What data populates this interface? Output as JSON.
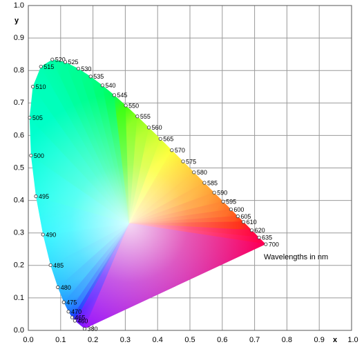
{
  "chart_data": {
    "type": "scatter",
    "x_label": "x",
    "y_label": "y",
    "annotation": "Wavelengths in nm",
    "wavelengths": [
      380,
      460,
      465,
      470,
      475,
      480,
      485,
      490,
      495,
      500,
      505,
      510,
      515,
      520,
      525,
      530,
      535,
      540,
      545,
      550,
      555,
      560,
      565,
      570,
      575,
      580,
      585,
      590,
      595,
      600,
      605,
      610,
      620,
      635,
      700
    ],
    "x": [
      0.1741,
      0.144,
      0.1355,
      0.1241,
      0.1096,
      0.0913,
      0.0687,
      0.0454,
      0.0235,
      0.0082,
      0.0039,
      0.0139,
      0.0389,
      0.0743,
      0.1142,
      0.1547,
      0.1929,
      0.2296,
      0.2658,
      0.3016,
      0.3373,
      0.3731,
      0.4087,
      0.4441,
      0.4788,
      0.5125,
      0.5448,
      0.5752,
      0.6029,
      0.627,
      0.6482,
      0.6658,
      0.6915,
      0.714,
      0.7347
    ],
    "values": [
      0.005,
      0.0297,
      0.0399,
      0.0578,
      0.0868,
      0.1327,
      0.2007,
      0.295,
      0.4127,
      0.5384,
      0.6548,
      0.7502,
      0.812,
      0.8338,
      0.8262,
      0.8059,
      0.7816,
      0.7543,
      0.7243,
      0.6923,
      0.6589,
      0.6245,
      0.5896,
      0.5547,
      0.5202,
      0.4866,
      0.4544,
      0.4242,
      0.3965,
      0.3725,
      0.3514,
      0.334,
      0.3083,
      0.2859,
      0.2653
    ],
    "xlim": [
      0,
      1
    ],
    "ylim": [
      0,
      1
    ],
    "xticks": [
      {
        "value": 0,
        "label": "0.0"
      },
      {
        "value": 0.1,
        "label": "0.1"
      },
      {
        "value": 0.2,
        "label": "0.2"
      },
      {
        "value": 0.3,
        "label": "0.3"
      },
      {
        "value": 0.4,
        "label": "0.4"
      },
      {
        "value": 0.5,
        "label": "0.5"
      },
      {
        "value": 0.6,
        "label": "0.6"
      },
      {
        "value": 0.7,
        "label": "0.7"
      },
      {
        "value": 0.8,
        "label": "0.8"
      },
      {
        "value": 0.9,
        "label": "0.9"
      },
      {
        "value": 1,
        "label": "1.0"
      }
    ],
    "yticks": [
      {
        "value": 0,
        "label": "0.0"
      },
      {
        "value": 0.1,
        "label": "0.1"
      },
      {
        "value": 0.2,
        "label": "0.2"
      },
      {
        "value": 0.3,
        "label": "0.3"
      },
      {
        "value": 0.4,
        "label": "0.4"
      },
      {
        "value": 0.5,
        "label": "0.5"
      },
      {
        "value": 0.6,
        "label": "0.6"
      },
      {
        "value": 0.7,
        "label": "0.7"
      },
      {
        "value": 0.8,
        "label": "0.8"
      },
      {
        "value": 0.9,
        "label": "0.9"
      },
      {
        "value": 1,
        "label": "1.0"
      }
    ],
    "grid": true
  }
}
